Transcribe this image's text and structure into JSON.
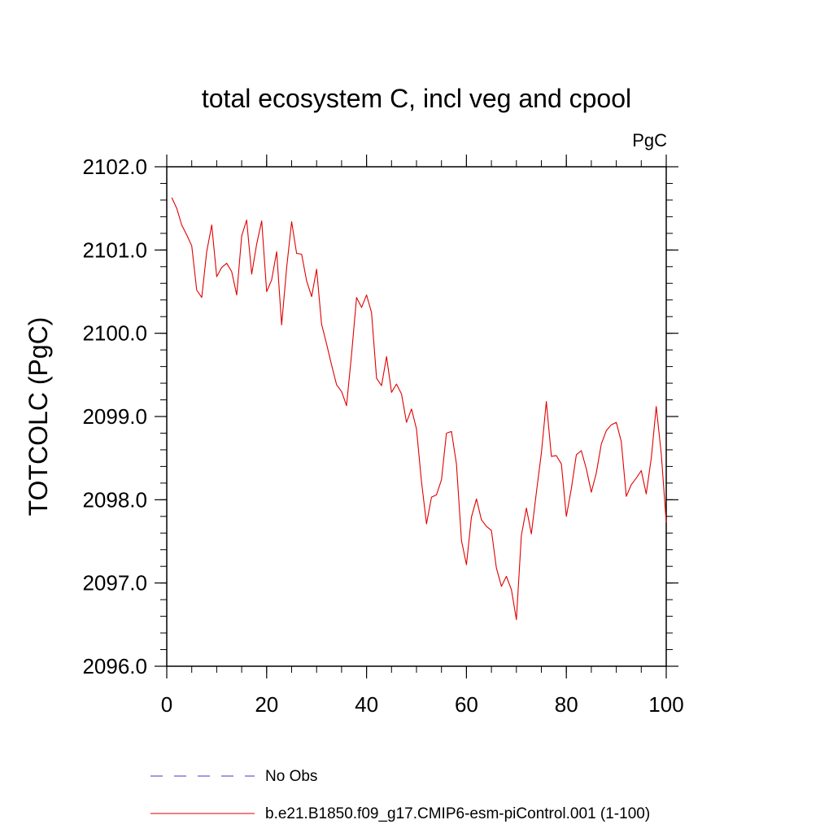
{
  "chart_data": {
    "type": "line",
    "title": "total ecosystem C, incl veg and cpool",
    "units": "PgC",
    "ylabel": "TOTCOLC  (PgC)",
    "xlabel": "",
    "xlim": [
      0,
      100
    ],
    "ylim": [
      2096.0,
      2102.0
    ],
    "x_ticks": [
      0,
      20,
      40,
      60,
      80,
      100
    ],
    "x_tick_labels": [
      "0",
      "20",
      "40",
      "60",
      "80",
      "100"
    ],
    "y_ticks": [
      2096.0,
      2097.0,
      2098.0,
      2099.0,
      2100.0,
      2101.0,
      2102.0
    ],
    "y_tick_labels": [
      "2096.0",
      "2097.0",
      "2098.0",
      "2099.0",
      "2100.0",
      "2101.0",
      "2102.0"
    ],
    "grid": false,
    "legend": [
      {
        "label": "No Obs",
        "color": "#3b3bbf",
        "style": "dashed"
      },
      {
        "label": "b.e21.B1850.f09_g17.CMIP6-esm-piControl.001 (1-100)",
        "color": "#e00000",
        "style": "solid"
      }
    ],
    "series": [
      {
        "name": "b.e21.B1850.f09_g17.CMIP6-esm-piControl.001 (1-100)",
        "color": "#e00000",
        "x": [
          1,
          2,
          3,
          4,
          5,
          6,
          7,
          8,
          9,
          10,
          11,
          12,
          13,
          14,
          15,
          16,
          17,
          18,
          19,
          20,
          21,
          22,
          23,
          24,
          25,
          26,
          27,
          28,
          29,
          30,
          31,
          32,
          33,
          34,
          35,
          36,
          37,
          38,
          39,
          40,
          41,
          42,
          43,
          44,
          45,
          46,
          47,
          48,
          49,
          50,
          51,
          52,
          53,
          54,
          55,
          56,
          57,
          58,
          59,
          60,
          61,
          62,
          63,
          64,
          65,
          66,
          67,
          68,
          69,
          70,
          71,
          72,
          73,
          74,
          75,
          76,
          77,
          78,
          79,
          80,
          81,
          82,
          83,
          84,
          85,
          86,
          87,
          88,
          89,
          90,
          91,
          92,
          93,
          94,
          95,
          96,
          97,
          98,
          99,
          100
        ],
        "values": [
          2101.63,
          2101.5,
          2101.3,
          2101.18,
          2101.05,
          2100.52,
          2100.43,
          2100.98,
          2101.3,
          2100.68,
          2100.79,
          2100.84,
          2100.74,
          2100.46,
          2101.17,
          2101.36,
          2100.71,
          2101.07,
          2101.35,
          2100.5,
          2100.64,
          2100.98,
          2100.1,
          2100.79,
          2101.34,
          2100.96,
          2100.95,
          2100.63,
          2100.44,
          2100.77,
          2100.11,
          2099.87,
          2099.62,
          2099.38,
          2099.3,
          2099.13,
          2099.75,
          2100.43,
          2100.31,
          2100.46,
          2100.25,
          2099.46,
          2099.37,
          2099.72,
          2099.29,
          2099.39,
          2099.27,
          2098.93,
          2099.09,
          2098.85,
          2098.22,
          2097.71,
          2098.03,
          2098.06,
          2098.24,
          2098.8,
          2098.82,
          2098.43,
          2097.51,
          2097.22,
          2097.79,
          2098.01,
          2097.76,
          2097.68,
          2097.63,
          2097.18,
          2096.96,
          2097.08,
          2096.92,
          2096.56,
          2097.57,
          2097.9,
          2097.59,
          2098.09,
          2098.56,
          2099.18,
          2098.52,
          2098.53,
          2098.43,
          2097.8,
          2098.13,
          2098.54,
          2098.59,
          2098.37,
          2098.09,
          2098.32,
          2098.67,
          2098.83,
          2098.9,
          2098.93,
          2098.7,
          2098.04,
          2098.18,
          2098.26,
          2098.35,
          2098.07,
          2098.5,
          2099.12,
          2098.55,
          2097.73
        ]
      }
    ]
  }
}
